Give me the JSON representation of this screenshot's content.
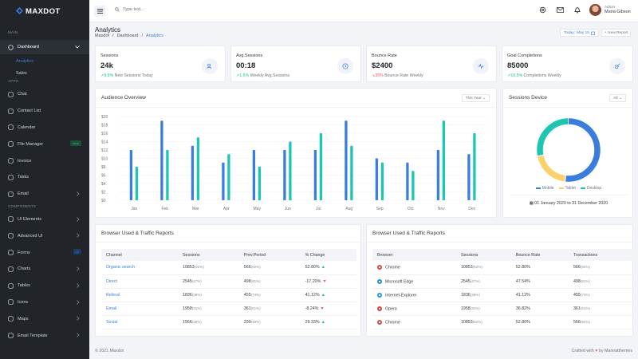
{
  "brand": {
    "name": "MAXDOT"
  },
  "sidebar": {
    "section_main": "MAIN",
    "dashboard": "Dashboard",
    "subitems": [
      "Analytics",
      "Sales"
    ],
    "section_apps": "APPS",
    "apps": [
      {
        "label": "Chat",
        "icon": "chat-icon"
      },
      {
        "label": "Contact List",
        "icon": "contact-icon"
      },
      {
        "label": "Calendar",
        "icon": "calendar-icon"
      },
      {
        "label": "File Manager",
        "icon": "folder-icon",
        "badge": "New"
      },
      {
        "label": "Invoice",
        "icon": "invoice-icon"
      },
      {
        "label": "Tasks",
        "icon": "tasks-icon"
      },
      {
        "label": "Email",
        "icon": "mail-icon"
      }
    ],
    "section_components": "COMPONENTS",
    "components": [
      {
        "label": "UI Elements",
        "icon": "layers-icon"
      },
      {
        "label": "Advanced UI",
        "icon": "box-icon"
      },
      {
        "label": "Forms",
        "icon": "forms-icon",
        "badge": "10"
      },
      {
        "label": "Charts",
        "icon": "chart-icon"
      },
      {
        "label": "Tables",
        "icon": "table-icon"
      },
      {
        "label": "Icons",
        "icon": "icons-icon"
      },
      {
        "label": "Maps",
        "icon": "map-icon"
      },
      {
        "label": "Email Template",
        "icon": "template-icon"
      }
    ]
  },
  "topbar": {
    "search_placeholder": "Type text...",
    "user_role": "Admin",
    "user_name": "Maria Gibson"
  },
  "page": {
    "title": "Analytics",
    "breadcrumb": [
      "Maxdot",
      "Dashboard",
      "Analytics"
    ],
    "today_label": "Today:",
    "today_value": "May 15",
    "new_report": "New Report"
  },
  "stats": [
    {
      "label": "Sessions",
      "value": "24k",
      "change": "9.5%",
      "note": "New Sessions Today",
      "dir": "up",
      "icon": "users-icon"
    },
    {
      "label": "Avg.Sessions",
      "value": "00:18",
      "change": "1.5%",
      "note": "Weekly Avg.Sessions",
      "dir": "up",
      "icon": "clock-icon"
    },
    {
      "label": "Bounce Rate",
      "value": "$2400",
      "change": "35%",
      "note": "Bounce Rate Weekly",
      "dir": "down",
      "icon": "activity-icon"
    },
    {
      "label": "Goal Completions",
      "value": "85000",
      "change": "10.5%",
      "note": "Completions Weekly",
      "dir": "up",
      "icon": "target-icon"
    }
  ],
  "audience": {
    "title": "Audience Overview",
    "filter": "This Year"
  },
  "chart_data": {
    "type": "bar",
    "categories": [
      "Jan",
      "Feb",
      "Mar",
      "Apr",
      "May",
      "Jun",
      "Jul",
      "Aug",
      "Sep",
      "Oct",
      "Nov",
      "Dec"
    ],
    "series": [
      {
        "values": [
          12,
          19,
          13,
          9,
          12,
          12,
          12,
          19,
          10,
          9,
          12,
          11
        ],
        "color": "#3b7ddd"
      },
      {
        "values": [
          8,
          12,
          15,
          11,
          8,
          14,
          16,
          13,
          9,
          7,
          19,
          16
        ],
        "color": "#1cc6b0"
      }
    ],
    "yticks": [
      "$20",
      "$18",
      "$16",
      "$14",
      "$12",
      "$10",
      "$8",
      "$6",
      "$4",
      "$2",
      "$0"
    ],
    "ylim": [
      0,
      20
    ],
    "grid": true
  },
  "device": {
    "title": "Sessions Device",
    "filter": "All",
    "legend": [
      {
        "label": "Mobile",
        "color": "#3b7ddd",
        "value": 65
      },
      {
        "label": "Tablet",
        "color": "#fcd06b",
        "value": 25
      },
      {
        "label": "Desktop",
        "color": "#1cc6b0",
        "value": 35
      }
    ],
    "date_range": "01 January 2020 to 31 December 2020"
  },
  "traffic_left": {
    "title": "Browser Used & Traffic Reports",
    "headers": [
      "Channel",
      "Sessions",
      "Prev.Period",
      "% Change"
    ],
    "rows": [
      {
        "name": "Organic search",
        "sessions": "10853",
        "s_pct": "(52%)",
        "prev": "566",
        "p_pct": "(92%)",
        "change": "52.80%",
        "dir": "up"
      },
      {
        "name": "Direct",
        "sessions": "2545",
        "s_pct": "(47%)",
        "prev": "498",
        "p_pct": "(81%)",
        "change": "-17.20%",
        "dir": "down"
      },
      {
        "name": "Referal",
        "sessions": "1836",
        "s_pct": "(38%)",
        "prev": "455",
        "p_pct": "(74%)",
        "change": "41.12%",
        "dir": "up"
      },
      {
        "name": "Email",
        "sessions": "1958",
        "s_pct": "(31%)",
        "prev": "361",
        "p_pct": "(61%)",
        "change": "-8.24%",
        "dir": "down"
      },
      {
        "name": "Social",
        "sessions": "1566",
        "s_pct": "(26%)",
        "prev": "299",
        "p_pct": "(49%)",
        "change": "29.33%",
        "dir": "up"
      }
    ]
  },
  "traffic_right": {
    "title": "Browser Used & Traffic Reports",
    "headers": [
      "Browser",
      "Sessions",
      "Bounce Rate",
      "Transactions"
    ],
    "rows": [
      {
        "name": "Chrome",
        "icon": "chrome-icon",
        "color": "#e8453c",
        "sessions": "10853",
        "s_pct": "(52%)",
        "bounce": "52.80%",
        "tx": "566",
        "t_pct": "(92%)"
      },
      {
        "name": "Microsoft Edge",
        "icon": "edge-icon",
        "color": "#1e88e5",
        "sessions": "2545",
        "s_pct": "(47%)",
        "bounce": "47.54%",
        "tx": "498",
        "t_pct": "(81%)"
      },
      {
        "name": "Internet-Explorer",
        "icon": "ie-icon",
        "color": "#2196f3",
        "sessions": "1836",
        "s_pct": "(38%)",
        "bounce": "41.12%",
        "tx": "455",
        "t_pct": "(74%)"
      },
      {
        "name": "Opera",
        "icon": "opera-icon",
        "color": "#e53935",
        "sessions": "1958",
        "s_pct": "(31%)",
        "bounce": "36.82%",
        "tx": "361",
        "t_pct": "(61%)"
      },
      {
        "name": "Chrome",
        "icon": "chrome-icon",
        "color": "#e8453c",
        "sessions": "10853",
        "s_pct": "(52%)",
        "bounce": "52.80%",
        "tx": "566",
        "t_pct": "(92%)"
      }
    ]
  },
  "footer": {
    "copyright": "© 2021 Maxdot",
    "crafted_prefix": "Crafted with",
    "crafted_suffix": "by Mannatthemes"
  }
}
